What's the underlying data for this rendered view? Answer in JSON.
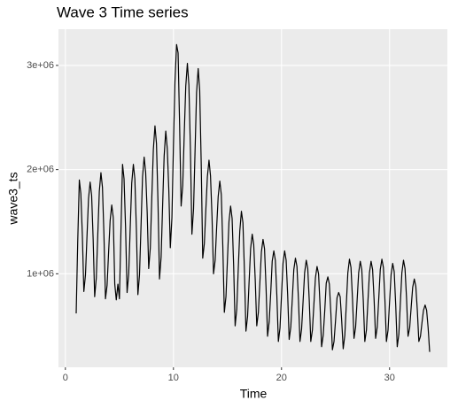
{
  "chart_data": {
    "type": "line",
    "title": "Wave 3 Time series",
    "x_label": "Time",
    "y_label": "wave3_ts",
    "color": "#000000",
    "grid": true,
    "xlim": [
      -0.64,
      35.35
    ],
    "ylim": [
      102500,
      3347500
    ],
    "xticks": [
      0,
      10,
      20,
      30
    ],
    "yticks": [
      {
        "value": 1000000,
        "label": "1e+06"
      },
      {
        "value": 2000000,
        "label": "2e+06"
      },
      {
        "value": 3000000,
        "label": "3e+06"
      }
    ],
    "x": [
      1.0,
      1.14,
      1.29,
      1.43,
      1.57,
      1.71,
      1.86,
      2.0,
      2.14,
      2.29,
      2.43,
      2.57,
      2.71,
      2.86,
      3.0,
      3.14,
      3.29,
      3.43,
      3.57,
      3.71,
      3.86,
      4.0,
      4.14,
      4.29,
      4.43,
      4.57,
      4.71,
      4.86,
      5.0,
      5.14,
      5.29,
      5.43,
      5.57,
      5.71,
      5.86,
      6.0,
      6.14,
      6.29,
      6.43,
      6.57,
      6.71,
      6.86,
      7.0,
      7.14,
      7.29,
      7.43,
      7.57,
      7.71,
      7.86,
      8.0,
      8.14,
      8.29,
      8.43,
      8.57,
      8.71,
      8.86,
      9.0,
      9.14,
      9.29,
      9.43,
      9.57,
      9.71,
      9.86,
      10.0,
      10.14,
      10.29,
      10.43,
      10.57,
      10.71,
      10.86,
      11.0,
      11.14,
      11.29,
      11.43,
      11.57,
      11.71,
      11.86,
      12.0,
      12.14,
      12.29,
      12.43,
      12.57,
      12.71,
      12.86,
      13.0,
      13.14,
      13.29,
      13.43,
      13.57,
      13.71,
      13.86,
      14.0,
      14.14,
      14.29,
      14.43,
      14.57,
      14.71,
      14.86,
      15.0,
      15.14,
      15.29,
      15.43,
      15.57,
      15.71,
      15.86,
      16.0,
      16.14,
      16.29,
      16.43,
      16.57,
      16.71,
      16.86,
      17.0,
      17.14,
      17.29,
      17.43,
      17.57,
      17.71,
      17.86,
      18.0,
      18.14,
      18.29,
      18.43,
      18.57,
      18.71,
      18.86,
      19.0,
      19.14,
      19.29,
      19.43,
      19.57,
      19.71,
      19.86,
      20.0,
      20.14,
      20.29,
      20.43,
      20.57,
      20.71,
      20.86,
      21.0,
      21.14,
      21.29,
      21.43,
      21.57,
      21.71,
      21.86,
      22.0,
      22.14,
      22.29,
      22.43,
      22.57,
      22.71,
      22.86,
      23.0,
      23.14,
      23.29,
      23.43,
      23.57,
      23.71,
      23.86,
      24.0,
      24.14,
      24.29,
      24.43,
      24.57,
      24.71,
      24.86,
      25.0,
      25.14,
      25.29,
      25.43,
      25.57,
      25.71,
      25.86,
      26.0,
      26.14,
      26.29,
      26.43,
      26.57,
      26.71,
      26.86,
      27.0,
      27.14,
      27.29,
      27.43,
      27.57,
      27.71,
      27.86,
      28.0,
      28.14,
      28.29,
      28.43,
      28.57,
      28.71,
      28.86,
      29.0,
      29.14,
      29.29,
      29.43,
      29.57,
      29.71,
      29.86,
      30.0,
      30.14,
      30.29,
      30.43,
      30.57,
      30.71,
      30.86,
      31.0,
      31.14,
      31.29,
      31.43,
      31.57,
      31.71,
      31.86,
      32.0,
      32.14,
      32.29,
      32.43,
      32.57,
      32.71,
      32.86,
      33.0,
      33.14,
      33.29,
      33.43,
      33.57,
      33.71
    ],
    "values": [
      620000,
      1300000,
      1900000,
      1770000,
      1370000,
      830000,
      990000,
      1360000,
      1720000,
      1880000,
      1750000,
      1330000,
      780000,
      960000,
      1380000,
      1790000,
      1970000,
      1830000,
      1370000,
      760000,
      890000,
      1210000,
      1510000,
      1660000,
      1540000,
      900000,
      750000,
      900000,
      760000,
      1400000,
      2050000,
      1910000,
      1440000,
      820000,
      1000000,
      1440000,
      1870000,
      2050000,
      1910000,
      1430000,
      800000,
      990000,
      1460000,
      1930000,
      2120000,
      1970000,
      1590000,
      1050000,
      1250000,
      1740000,
      2190000,
      2420000,
      2250000,
      1690000,
      950000,
      1160000,
      1660000,
      2130000,
      2370000,
      2200000,
      1810000,
      1250000,
      1540000,
      2230000,
      2840000,
      3200000,
      3120000,
      2430000,
      1650000,
      1850000,
      2340000,
      2800000,
      3020000,
      2810000,
      2200000,
      1380000,
      1620000,
      2180000,
      2740000,
      2970000,
      2760000,
      2060000,
      1150000,
      1290000,
      1620000,
      1930000,
      2090000,
      1940000,
      1550000,
      1000000,
      1130000,
      1450000,
      1740000,
      1890000,
      1760000,
      1260000,
      630000,
      780000,
      1140000,
      1500000,
      1650000,
      1530000,
      1080000,
      500000,
      660000,
      1050000,
      1410000,
      1600000,
      1490000,
      1030000,
      450000,
      590000,
      920000,
      1240000,
      1380000,
      1280000,
      940000,
      500000,
      630000,
      920000,
      1210000,
      1330000,
      1240000,
      870000,
      400000,
      540000,
      810000,
      1120000,
      1220000,
      1130000,
      790000,
      350000,
      480000,
      790000,
      1100000,
      1220000,
      1130000,
      800000,
      370000,
      490000,
      760000,
      1040000,
      1150000,
      1070000,
      750000,
      350000,
      470000,
      740000,
      1010000,
      1130000,
      1050000,
      740000,
      350000,
      460000,
      710000,
      960000,
      1070000,
      1000000,
      690000,
      300000,
      410000,
      640000,
      910000,
      970000,
      900000,
      620000,
      270000,
      350000,
      550000,
      770000,
      820000,
      780000,
      550000,
      280000,
      410000,
      710000,
      1010000,
      1140000,
      1060000,
      760000,
      380000,
      490000,
      750000,
      1010000,
      1120000,
      1040000,
      740000,
      350000,
      460000,
      740000,
      1010000,
      1120000,
      1040000,
      750000,
      380000,
      490000,
      760000,
      1040000,
      1140000,
      1060000,
      750000,
      350000,
      460000,
      730000,
      990000,
      1100000,
      1020000,
      700000,
      300000,
      420000,
      720000,
      1010000,
      1130000,
      1050000,
      770000,
      400000,
      480000,
      680000,
      870000,
      950000,
      880000,
      650000,
      350000,
      400000,
      530000,
      650000,
      700000,
      650000,
      480000,
      250000
    ]
  }
}
